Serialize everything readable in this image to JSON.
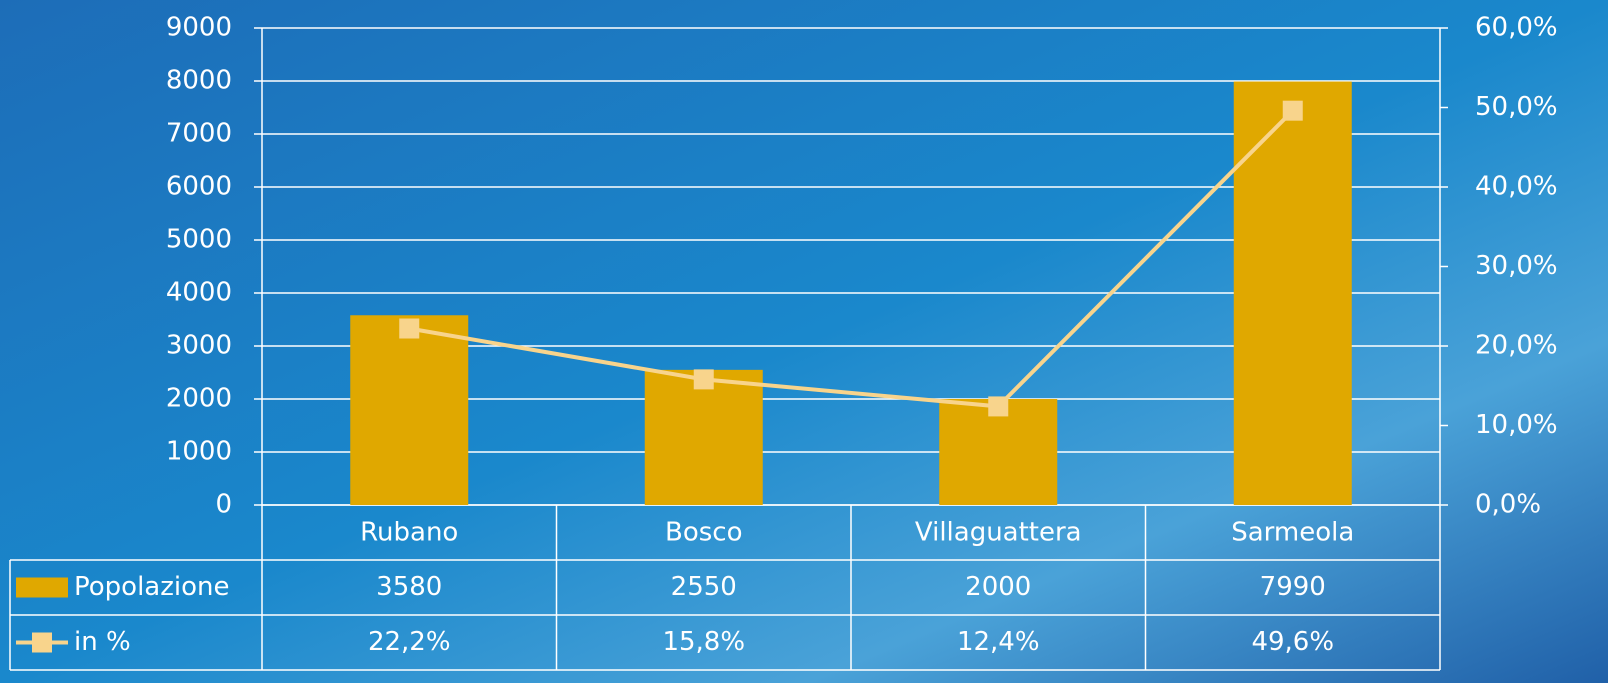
{
  "chart_data": {
    "type": "bar_line",
    "categories": [
      "Rubano",
      "Bosco",
      "Villaguattera",
      "Sarmeola"
    ],
    "series": [
      {
        "name": "Popolazione",
        "type": "bar",
        "color": "#e0a800",
        "values": [
          3580,
          2550,
          2000,
          7990
        ]
      },
      {
        "name": "in %",
        "type": "line",
        "axis": "y2",
        "color": "#f8d48c",
        "values": [
          22.2,
          15.8,
          12.4,
          49.6
        ],
        "value_labels": [
          "22,2%",
          "15,8%",
          "12,4%",
          "49,6%"
        ]
      }
    ],
    "ylim": [
      0,
      9000
    ],
    "yticks": [
      0,
      1000,
      2000,
      3000,
      4000,
      5000,
      6000,
      7000,
      8000,
      9000
    ],
    "y2lim": [
      0,
      60
    ],
    "y2ticks": [
      {
        "value": 0,
        "label": "0,0%"
      },
      {
        "value": 10,
        "label": "10,0%"
      },
      {
        "value": 20,
        "label": "20,0%"
      },
      {
        "value": 30,
        "label": "30,0%"
      },
      {
        "value": 40,
        "label": "40,0%"
      },
      {
        "value": 50,
        "label": "50,0%"
      },
      {
        "value": 60,
        "label": "60,0%"
      }
    ],
    "grid": true
  }
}
